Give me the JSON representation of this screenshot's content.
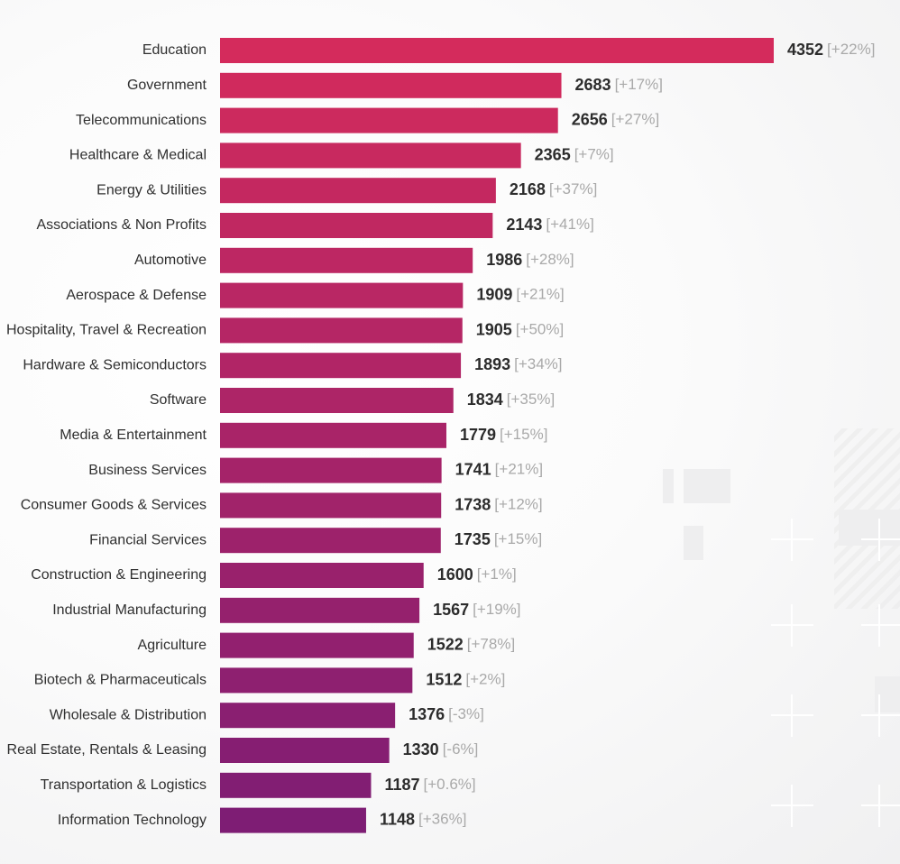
{
  "chart_data": {
    "type": "bar",
    "orientation": "horizontal",
    "title": "",
    "xlabel": "",
    "ylabel": "",
    "xlim": [
      0,
      4352
    ],
    "grid": false,
    "legend": "none",
    "colors": {
      "top": "#d42b5c",
      "bottom": "#7e1d74"
    },
    "categories": [
      "Education",
      "Government",
      "Telecommunications",
      "Healthcare & Medical",
      "Energy & Utilities",
      "Associations & Non Profits",
      "Automotive",
      "Aerospace & Defense",
      "Hospitality, Travel & Recreation",
      "Hardware & Semiconductors",
      "Software",
      "Media & Entertainment",
      "Business Services",
      "Consumer Goods & Services",
      "Financial Services",
      "Construction & Engineering",
      "Industrial Manufacturing",
      "Agriculture",
      "Biotech & Pharmaceuticals",
      "Wholesale & Distribution",
      "Real Estate, Rentals & Leasing",
      "Transportation & Logistics",
      "Information Technology"
    ],
    "values": [
      4352,
      2683,
      2656,
      2365,
      2168,
      2143,
      1986,
      1909,
      1905,
      1893,
      1834,
      1779,
      1741,
      1738,
      1735,
      1600,
      1567,
      1522,
      1512,
      1376,
      1330,
      1187,
      1148
    ],
    "changes": [
      "[+22%]",
      "[+17%]",
      "[+27%]",
      "[+7%]",
      "[+37%]",
      "[+41%]",
      "[+28%]",
      "[+21%]",
      "[+50%]",
      "[+34%]",
      "[+35%]",
      "[+15%]",
      "[+21%]",
      "[+12%]",
      "[+15%]",
      "[+1%]",
      "[+19%]",
      "[+78%]",
      "[+2%]",
      "[-3%]",
      "[-6%]",
      "[+0.6%]",
      "[+36%]"
    ]
  }
}
